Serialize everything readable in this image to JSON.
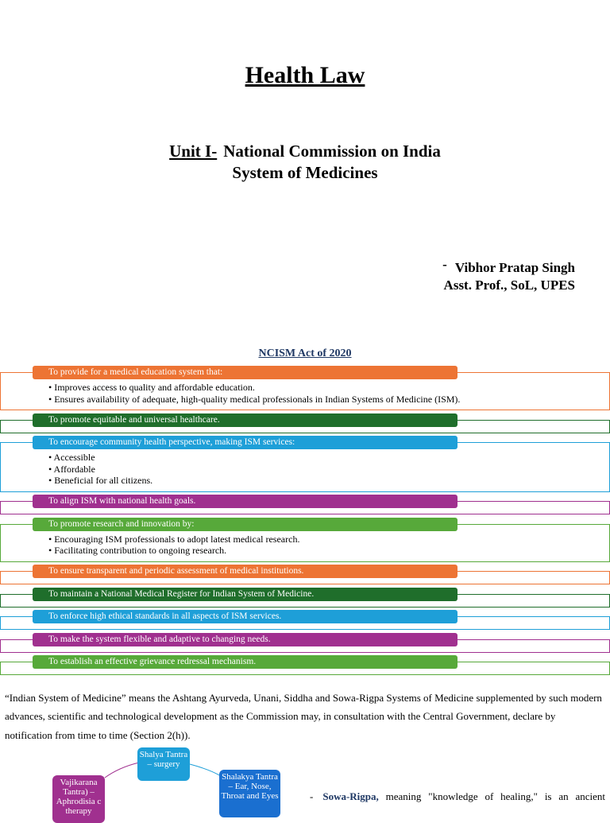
{
  "header": {
    "title": "Health Law",
    "unit_label": "Unit I-",
    "unit_title_lines": [
      "National Commission on India",
      "System of Medicines"
    ],
    "author_dash": "-",
    "author_name": "Vibhor Pratap Singh",
    "author_role": "Asst. Prof., SoL, UPES"
  },
  "section": {
    "title": "NCISM Act of 2020",
    "items": [
      {
        "heading": "To provide for a medical education system that:",
        "color": "#ed7434",
        "bullets": [
          "Improves access to quality and affordable education.",
          "Ensures availability of adequate, high-quality medical professionals in Indian Systems of Medicine (ISM)."
        ]
      },
      {
        "heading": "To promote equitable and universal healthcare.",
        "color": "#1f6e2b",
        "bullets": []
      },
      {
        "heading": "To encourage community health perspective, making ISM services:",
        "color": "#1e9fd8",
        "bullets": [
          "Accessible",
          "Affordable",
          "Beneficial for all citizens."
        ]
      },
      {
        "heading": "To align ISM with national health goals.",
        "color": "#a0308f",
        "bullets": []
      },
      {
        "heading": "To promote research and innovation by:",
        "color": "#57a93a",
        "bullets": [
          "Encouraging ISM professionals to adopt latest medical research.",
          "Facilitating contribution to ongoing research."
        ]
      },
      {
        "heading": "To ensure transparent and periodic assessment of medical institutions.",
        "color": "#ed7434",
        "bullets": []
      },
      {
        "heading": "To maintain a National Medical Register for Indian System of Medicine.",
        "color": "#1f6e2b",
        "bullets": []
      },
      {
        "heading": "To enforce high ethical standards in all aspects of ISM services.",
        "color": "#1e9fd8",
        "bullets": []
      },
      {
        "heading": "To make the system flexible and adaptive to changing needs.",
        "color": "#a0308f",
        "bullets": []
      },
      {
        "heading": "To establish an effective grievance redressal mechanism.",
        "color": "#57a93a",
        "bullets": []
      }
    ]
  },
  "definition": "“Indian System of Medicine” means the Ashtang Ayurveda, Unani, Siddha and Sowa-Rigpa Systems of Medicine supplemented by such modern advances, scientific and technological development as the Commission may, in consultation with the Central Government, declare by notification from time to time (Section 2(h)).",
  "diagram": {
    "nodes": [
      {
        "label": "Shalya Tantra – surgery",
        "color": "#1e9fd8"
      },
      {
        "label": "Vajikarana Tantra) – Aphrodisia c therapy",
        "color": "#a0308f"
      },
      {
        "label": "Shalakya Tantra – Ear, Nose, Throat and Eyes",
        "color": "#1a6fd0"
      }
    ]
  },
  "side_note": {
    "dash": "-",
    "term": "Sowa-Rigpa,",
    "text": "meaning \"knowledge of healing,\" is an ancient"
  }
}
